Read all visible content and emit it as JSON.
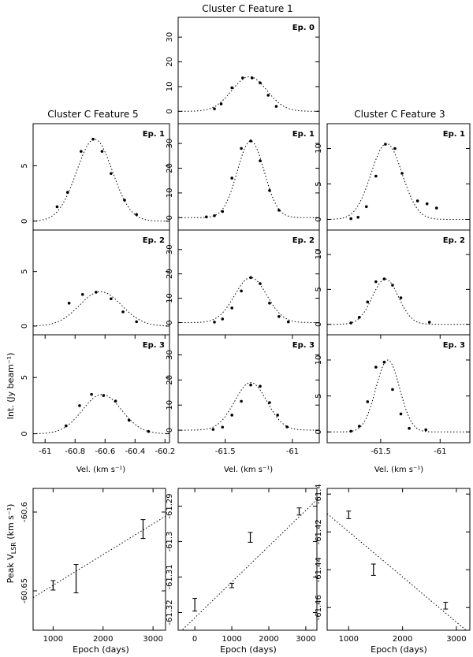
{
  "figure": {
    "y_label_spectra": "Int. (Jy beam⁻¹)",
    "y_label_peak": "Peak V",
    "y_label_peak_sub": "LSR",
    "y_label_peak_unit": " (km s⁻¹)",
    "x_label_spectra": "Vel. (km s⁻¹)",
    "x_label_epoch": "Epoch (days)"
  },
  "chart_data": [
    {
      "type": "scatter",
      "id": "f1-ep0",
      "title": "Cluster C    Feature 1",
      "epoch_label": "Ep. 0",
      "xlim": [
        -61.85,
        -60.8
      ],
      "ylim": [
        -5,
        38
      ],
      "xticks": [],
      "yticks": [
        0,
        10,
        20,
        30
      ],
      "fit": {
        "amp": 14,
        "center": -61.32,
        "sigma": 0.13
      },
      "x": [
        -61.58,
        -61.53,
        -61.45,
        -61.37,
        -61.3,
        -61.24,
        -61.18,
        -61.12
      ],
      "y": [
        1,
        3,
        9.5,
        13.5,
        13.5,
        11.5,
        6.5,
        2
      ]
    },
    {
      "type": "scatter",
      "id": "f5-ep1",
      "title": "Cluster C    Feature 5",
      "epoch_label": "Ep. 1",
      "xlim": [
        -61.08,
        -60.17
      ],
      "ylim": [
        -0.8,
        8.8
      ],
      "xticks": [],
      "yticks": [
        0,
        5
      ],
      "fit": {
        "amp": 7.4,
        "center": -60.67,
        "sigma": 0.12
      },
      "x": [
        -60.92,
        -60.85,
        -60.76,
        -60.68,
        -60.62,
        -60.56,
        -60.47,
        -60.39
      ],
      "y": [
        1.3,
        2.6,
        6.3,
        7.4,
        6.3,
        4.3,
        1.9,
        0.6
      ]
    },
    {
      "type": "scatter",
      "id": "f1-ep1",
      "title": "",
      "epoch_label": "Ep. 1",
      "xlim": [
        -61.85,
        -60.8
      ],
      "ylim": [
        -5,
        38
      ],
      "xticks": [],
      "yticks": [
        0,
        10,
        20,
        30
      ],
      "fit": {
        "amp": 31,
        "center": -61.31,
        "sigma": 0.1
      },
      "x": [
        -61.64,
        -61.58,
        -61.52,
        -61.45,
        -61.38,
        -61.31,
        -61.24,
        -61.17,
        -61.1
      ],
      "y": [
        0.3,
        0.8,
        2.5,
        16,
        28,
        31,
        23,
        11,
        3
      ]
    },
    {
      "type": "scatter",
      "id": "f3-ep1",
      "title": "Cluster C    Feature 3",
      "epoch_label": "Ep. 1",
      "xlim": [
        -61.95,
        -60.75
      ],
      "ylim": [
        -1.5,
        13.5
      ],
      "xticks": [],
      "yticks": [
        0,
        5,
        10
      ],
      "fit": {
        "amp": 10.7,
        "center": -61.45,
        "sigma": 0.13
      },
      "x": [
        -61.75,
        -61.69,
        -61.62,
        -61.54,
        -61.46,
        -61.38,
        -61.32,
        -61.19,
        -61.11,
        -61.03
      ],
      "y": [
        0.1,
        0.3,
        1.8,
        6.1,
        10.6,
        10,
        6.5,
        2.6,
        2.2,
        1.6
      ]
    },
    {
      "type": "scatter",
      "id": "f5-ep2",
      "title": "",
      "epoch_label": "Ep. 2",
      "xlim": [
        -61.08,
        -60.17
      ],
      "ylim": [
        -0.8,
        8.8
      ],
      "xticks": [],
      "yticks": [
        0,
        5
      ],
      "fit": {
        "amp": 3.15,
        "center": -60.63,
        "sigma": 0.14
      },
      "x": [
        -60.84,
        -60.75,
        -60.66,
        -60.56,
        -60.48,
        -60.39
      ],
      "y": [
        2.1,
        2.9,
        3.1,
        2.5,
        1.3,
        0.4
      ]
    },
    {
      "type": "scatter",
      "id": "f1-ep2",
      "title": "",
      "epoch_label": "Ep. 2",
      "xlim": [
        -61.85,
        -60.8
      ],
      "ylim": [
        -5,
        38
      ],
      "xticks": [],
      "yticks": [
        0,
        10,
        20,
        30
      ],
      "fit": {
        "amp": 18.5,
        "center": -61.31,
        "sigma": 0.12
      },
      "x": [
        -61.58,
        -61.52,
        -61.45,
        -61.38,
        -61.31,
        -61.24,
        -61.17,
        -61.1,
        -61.03
      ],
      "y": [
        0.2,
        1.5,
        6,
        13,
        18.5,
        16,
        8,
        2.5,
        0.3
      ]
    },
    {
      "type": "scatter",
      "id": "f3-ep2",
      "title": "",
      "epoch_label": "Ep. 2",
      "xlim": [
        -61.95,
        -60.75
      ],
      "ylim": [
        -1.5,
        13.5
      ],
      "xticks": [],
      "yticks": [
        0,
        5,
        10
      ],
      "fit": {
        "amp": 6.5,
        "center": -61.46,
        "sigma": 0.11
      },
      "x": [
        -61.75,
        -61.68,
        -61.61,
        -61.54,
        -61.47,
        -61.4,
        -61.33,
        -61.09
      ],
      "y": [
        0.2,
        1,
        3.2,
        6.1,
        6.5,
        5.6,
        3.8,
        0.3
      ]
    },
    {
      "type": "scatter",
      "id": "f5-ep3",
      "title": "",
      "epoch_label": "Ep. 3",
      "xlim": [
        -61.08,
        -60.17
      ],
      "ylim": [
        -0.8,
        8.8
      ],
      "xticks": [
        "-61",
        "-60.8",
        "-60.6",
        "-60.4",
        "-60.2"
      ],
      "xtick_values": [
        -61,
        -60.8,
        -60.6,
        -60.4,
        -60.2
      ],
      "yticks": [
        0,
        5
      ],
      "fit": {
        "amp": 3.5,
        "center": -60.62,
        "sigma": 0.13
      },
      "x": [
        -60.86,
        -60.77,
        -60.69,
        -60.61,
        -60.53,
        -60.44,
        -60.31
      ],
      "y": [
        0.7,
        2.5,
        3.5,
        3.4,
        2.9,
        1.2,
        0.2
      ]
    },
    {
      "type": "scatter",
      "id": "f1-ep3",
      "title": "",
      "epoch_label": "Ep. 3",
      "xlim": [
        -61.85,
        -60.8
      ],
      "ylim": [
        -5,
        38
      ],
      "xticks": [
        "-61.5",
        "-61"
      ],
      "xtick_values": [
        -61.5,
        -61
      ],
      "yticks": [
        0,
        10,
        20,
        30
      ],
      "fit": {
        "amp": 19,
        "center": -61.31,
        "sigma": 0.12
      },
      "x": [
        -61.59,
        -61.52,
        -61.45,
        -61.38,
        -61.31,
        -61.24,
        -61.17,
        -61.11,
        -61.04
      ],
      "y": [
        0.3,
        1.2,
        6,
        11.5,
        18,
        17.5,
        11,
        6,
        1.3
      ]
    },
    {
      "type": "scatter",
      "id": "f3-ep3",
      "title": "",
      "epoch_label": "Ep. 3",
      "xlim": [
        -61.95,
        -60.75
      ],
      "ylim": [
        -1.5,
        13.5
      ],
      "xticks": [
        "-61.5",
        "-61"
      ],
      "xtick_values": [
        -61.5,
        -61
      ],
      "yticks": [
        0,
        5,
        10
      ],
      "fit": {
        "amp": 10,
        "center": -61.44,
        "sigma": 0.1
      },
      "x": [
        -61.75,
        -61.68,
        -61.61,
        -61.54,
        -61.47,
        -61.4,
        -61.33,
        -61.26,
        -61.12
      ],
      "y": [
        0.1,
        0.8,
        4.2,
        9,
        9.7,
        5.9,
        2.5,
        0.5,
        0.3
      ]
    },
    {
      "type": "scatter",
      "id": "peak-f5",
      "title": "",
      "ylim": [
        -60.675,
        -60.585
      ],
      "xlim": [
        600,
        3250
      ],
      "xticks": [
        "1000",
        "2000",
        "3000"
      ],
      "xtick_values": [
        1000,
        2000,
        3000
      ],
      "yticks": [
        "-60.6",
        "-60.65"
      ],
      "ytick_values": [
        -60.6,
        -60.65
      ],
      "x": [
        1000,
        1460,
        2800
      ],
      "y": [
        -60.6465,
        -60.6423,
        -60.6108
      ],
      "err": [
        0.003,
        0.009,
        0.006
      ],
      "fit": {
        "slope": 1.95e-05,
        "intercept": -60.666
      }
    },
    {
      "type": "scatter",
      "id": "peak-f1",
      "title": "",
      "ylim": [
        -61.325,
        -61.285
      ],
      "xlim": [
        -450,
        3300
      ],
      "xticks": [
        "0",
        "1000",
        "2000",
        "3000"
      ],
      "xtick_values": [
        0,
        1000,
        2000,
        3000
      ],
      "yticks": [
        "-61.29",
        "-61.3",
        "-61.31",
        "-61.32"
      ],
      "ytick_values": [
        -61.29,
        -61.3,
        -61.31,
        -61.32
      ],
      "x": [
        0,
        1000,
        1500,
        2820
      ],
      "y": [
        -61.3178,
        -61.3124,
        -61.2988,
        -61.2915
      ],
      "err": [
        0.0018,
        0.0006,
        0.0014,
        0.001
      ],
      "fit": {
        "slope": 1.01e-05,
        "intercept": -61.3215
      }
    },
    {
      "type": "scatter",
      "id": "peak-f3",
      "title": "",
      "ylim": [
        -61.472,
        -61.397
      ],
      "xlim": [
        600,
        3250
      ],
      "xticks": [
        "1000",
        "2000",
        "3000"
      ],
      "xtick_values": [
        1000,
        2000,
        3000
      ],
      "yticks": [
        "-61.4",
        "-61.42",
        "-61.44",
        "-61.46"
      ],
      "ytick_values": [
        -61.4,
        -61.42,
        -61.44,
        -61.46
      ],
      "x": [
        1000,
        1460,
        2800
      ],
      "y": [
        -61.411,
        -61.44,
        -61.459
      ],
      "err": [
        0.002,
        0.003,
        0.0018
      ],
      "fit": {
        "slope": -2.39e-05,
        "intercept": -61.396
      }
    }
  ]
}
